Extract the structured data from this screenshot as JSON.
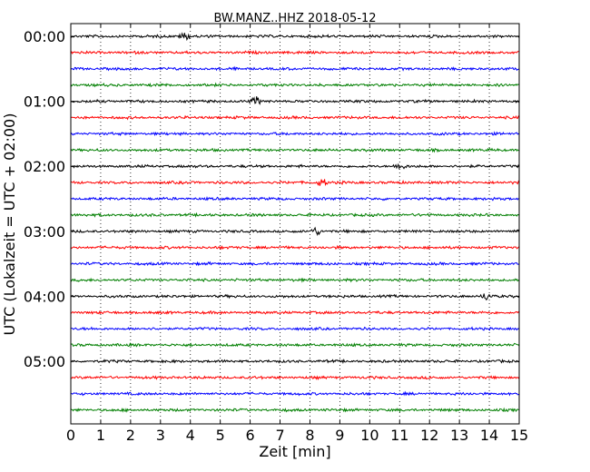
{
  "chart_data": {
    "type": "line",
    "title": "BW.MANZ..HHZ 2018-05-12",
    "xlabel": "Zeit  [min]",
    "ylabel": "UTC (Lokalzeit = UTC + 02:00)",
    "xlim": [
      0,
      15
    ],
    "x_ticks": [
      "0",
      "1",
      "2",
      "3",
      "4",
      "5",
      "6",
      "7",
      "8",
      "9",
      "10",
      "11",
      "12",
      "13",
      "14",
      "15"
    ],
    "y_ticks": [
      "00:00",
      "01:00",
      "02:00",
      "03:00",
      "04:00",
      "05:00"
    ],
    "grid": "vertical-dotted",
    "trace_colors": [
      "#000000",
      "#ff0000",
      "#0000ff",
      "#007f00"
    ],
    "trace_count": 24,
    "minutes_per_trace": 15,
    "notable_bursts": [
      {
        "trace": 0,
        "minute": 3.8
      },
      {
        "trace": 4,
        "minute": 6.2
      },
      {
        "trace": 8,
        "minute": 11.0
      },
      {
        "trace": 9,
        "minute": 8.4
      },
      {
        "trace": 12,
        "minute": 8.2
      },
      {
        "trace": 16,
        "minute": 13.9
      }
    ]
  }
}
